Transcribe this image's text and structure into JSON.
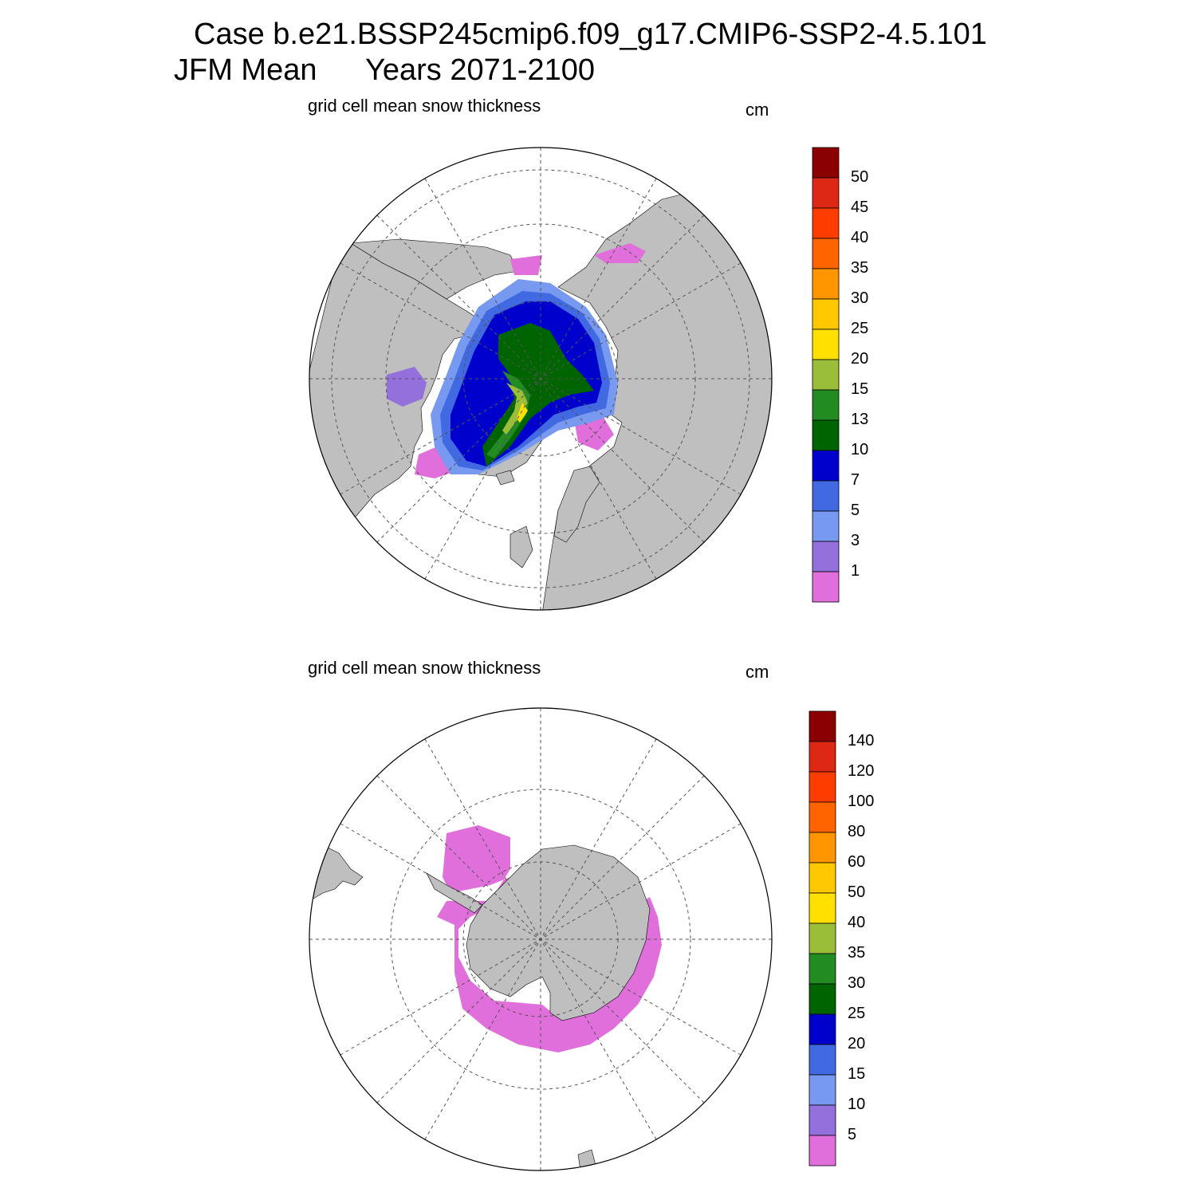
{
  "header": {
    "title_line1": "Case b.e21.BSSP245cmip6.f09_g17.CMIP6-SSP2-4.5.101",
    "title_line2_left": "JFM Mean",
    "title_line2_right": "Years 2071-2100"
  },
  "colors": {
    "land": "#bfbfbf",
    "ocean_no_snow": "#ffffff",
    "palette": [
      "#e06fdc",
      "#9370db",
      "#7799f0",
      "#4169e1",
      "#0000cd",
      "#006400",
      "#228b22",
      "#9abd3a",
      "#ffe000",
      "#ffc800",
      "#ff9600",
      "#ff6400",
      "#ff3c00",
      "#dc2814",
      "#8b0000"
    ]
  },
  "panels": [
    {
      "id": "north",
      "subtitle": "grid cell mean snow thickness",
      "units": "cm",
      "hemisphere": "Arctic (north polar stereographic)",
      "colorbar_levels": [
        "1",
        "3",
        "5",
        "7",
        "10",
        "13",
        "15",
        "20",
        "25",
        "30",
        "35",
        "40",
        "45",
        "50"
      ]
    },
    {
      "id": "south",
      "subtitle": "grid cell mean snow thickness",
      "units": "cm",
      "hemisphere": "Antarctic (south polar stereographic)",
      "colorbar_levels": [
        "5",
        "10",
        "15",
        "20",
        "25",
        "30",
        "35",
        "40",
        "50",
        "60",
        "80",
        "100",
        "120",
        "140"
      ]
    }
  ]
}
